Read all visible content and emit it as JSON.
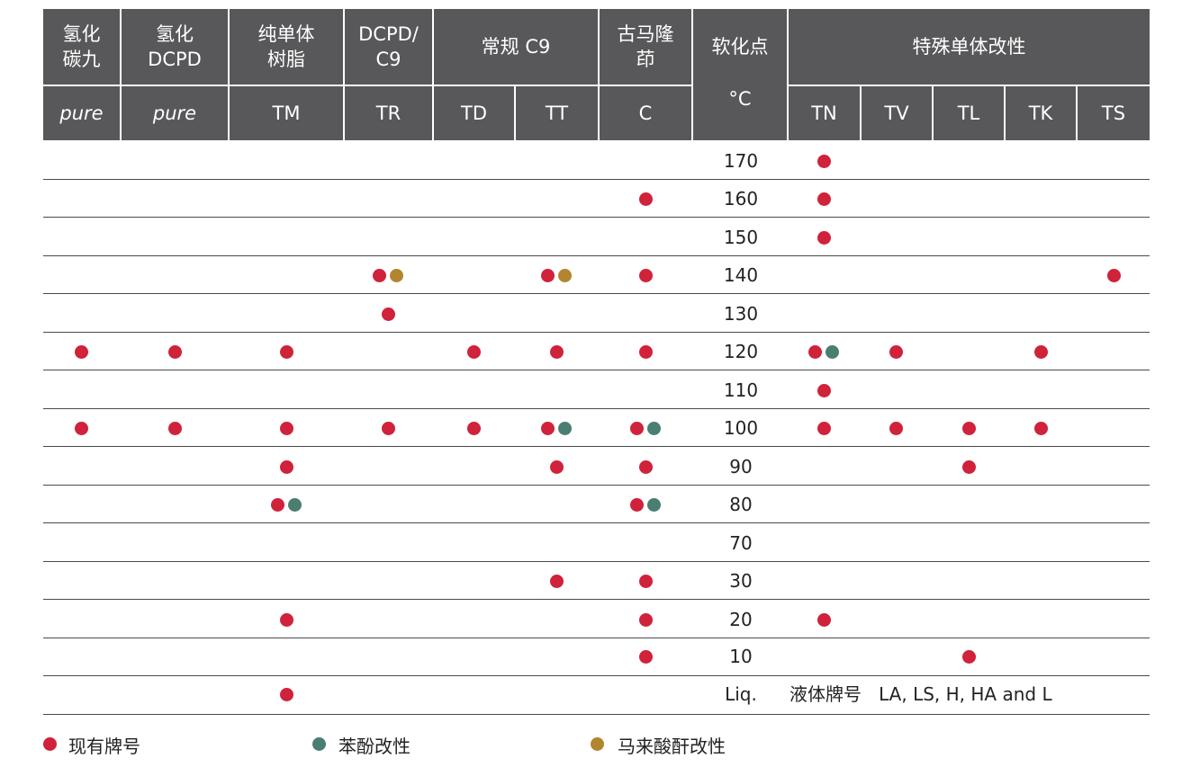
{
  "colors": {
    "header_bg": "#58585a",
    "existing": "#d0223a",
    "phenol": "#4a7e72",
    "maleic": "#b2862e"
  },
  "header": {
    "group_row": [
      "氢化\n碳九",
      "氢化\nDCPD",
      "纯单体\n树脂",
      "DCPD/\nC9",
      "常规 C9",
      "古马隆\n茚",
      "软化点",
      "特殊单体改性"
    ],
    "unit_label": "°C",
    "codes": [
      "pure",
      "pure",
      "TM",
      "TR",
      "TD",
      "TT",
      "C",
      "TN",
      "TV",
      "TL",
      "TK",
      "TS"
    ]
  },
  "rows": [
    {
      "temp": "170",
      "marks": {
        "TN": [
          "existing"
        ]
      }
    },
    {
      "temp": "160",
      "marks": {
        "C": [
          "existing"
        ],
        "TN": [
          "existing"
        ]
      }
    },
    {
      "temp": "150",
      "marks": {
        "TN": [
          "existing"
        ]
      }
    },
    {
      "temp": "140",
      "marks": {
        "TR": [
          "existing",
          "maleic"
        ],
        "TT": [
          "existing",
          "maleic"
        ],
        "C": [
          "existing"
        ],
        "TS": [
          "existing"
        ]
      }
    },
    {
      "temp": "130",
      "marks": {
        "TR": [
          "existing"
        ]
      }
    },
    {
      "temp": "120",
      "marks": {
        "H_C9": [
          "existing"
        ],
        "H_DCPD": [
          "existing"
        ],
        "TM": [
          "existing"
        ],
        "TD": [
          "existing"
        ],
        "TT": [
          "existing"
        ],
        "C": [
          "existing"
        ],
        "TN": [
          "existing",
          "phenol"
        ],
        "TV": [
          "existing"
        ],
        "TK": [
          "existing"
        ]
      }
    },
    {
      "temp": "110",
      "marks": {
        "TN": [
          "existing"
        ]
      }
    },
    {
      "temp": "100",
      "marks": {
        "H_C9": [
          "existing"
        ],
        "H_DCPD": [
          "existing"
        ],
        "TM": [
          "existing"
        ],
        "TR": [
          "existing"
        ],
        "TD": [
          "existing"
        ],
        "TT": [
          "existing",
          "phenol"
        ],
        "C": [
          "existing",
          "phenol"
        ],
        "TN": [
          "existing"
        ],
        "TV": [
          "existing"
        ],
        "TL": [
          "existing"
        ],
        "TK": [
          "existing"
        ]
      }
    },
    {
      "temp": "90",
      "marks": {
        "TM": [
          "existing"
        ],
        "TT": [
          "existing"
        ],
        "C": [
          "existing"
        ],
        "TL": [
          "existing"
        ]
      }
    },
    {
      "temp": "80",
      "marks": {
        "TM": [
          "existing",
          "phenol"
        ],
        "C": [
          "existing",
          "phenol"
        ]
      }
    },
    {
      "temp": "70",
      "marks": {}
    },
    {
      "temp": "30",
      "marks": {
        "TT": [
          "existing"
        ],
        "C": [
          "existing"
        ]
      }
    },
    {
      "temp": "20",
      "marks": {
        "TM": [
          "existing"
        ],
        "C": [
          "existing"
        ],
        "TN": [
          "existing"
        ]
      }
    },
    {
      "temp": "10",
      "marks": {
        "C": [
          "existing"
        ],
        "TL": [
          "existing"
        ]
      }
    },
    {
      "temp": "Liq.",
      "marks": {
        "TM": [
          "existing"
        ]
      },
      "note": "液体牌号   LA, LS, H, HA and L"
    }
  ],
  "legend": [
    {
      "key": "existing",
      "label": "现有牌号"
    },
    {
      "key": "phenol",
      "label": "苯酚改性"
    },
    {
      "key": "maleic",
      "label": "马来酸酐改性"
    }
  ]
}
